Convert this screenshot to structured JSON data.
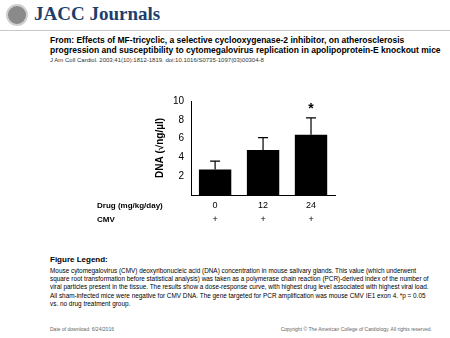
{
  "header": {
    "brand": "JACC Journals"
  },
  "title": "From: Effects of MF-tricyclic, a selective cyclooxygenase-2 inhibitor, on atherosclerosis progression and susceptibility to cytomegalovirus replication in apolipoprotein-E knockout mice",
  "citation": "J Am Coll Cardiol. 2003;41(10):1812-1819. doi:10.1016/S0735-1097(03)00304-8",
  "chart_data": {
    "type": "bar",
    "y_label": "DNA (√ng/µl)",
    "x_label": "Drug (mg/kg/day)",
    "categories": [
      "0",
      "12",
      "24"
    ],
    "second_row": {
      "label": "CMV",
      "values": [
        "+",
        "+",
        "+"
      ]
    },
    "values": [
      2.7,
      4.8,
      6.4
    ],
    "errors": [
      0.9,
      1.3,
      1.8
    ],
    "color": "#000000",
    "ylim": [
      0,
      10
    ],
    "yticks": [
      2,
      4,
      6,
      8,
      10
    ],
    "grid": false,
    "annotation": {
      "text": "*",
      "category": "24"
    }
  },
  "figure_legend": {
    "heading": "Figure Legend:",
    "text": "Mouse cytomegalovirus (CMV) deoxyribonucleic acid (DNA) concentration in mouse salivary glands. This value (which underwent square root transformation before statistical analysis) was taken as a polymerase chain reaction (PCR)-derived index of the number of viral particles present in the tissue. The results show a dose-response curve, with highest drug level associated with highest viral load. All sham-infected mice were negative for CMV DNA. The gene targeted for PCR amplification was mouse CMV IE1 exon 4. *p = 0.05 vs. no drug treatment group."
  },
  "footer": {
    "left": "Date of download: 6/24/2016",
    "right": "Copyright © The American College of Cardiology. All rights reserved."
  }
}
